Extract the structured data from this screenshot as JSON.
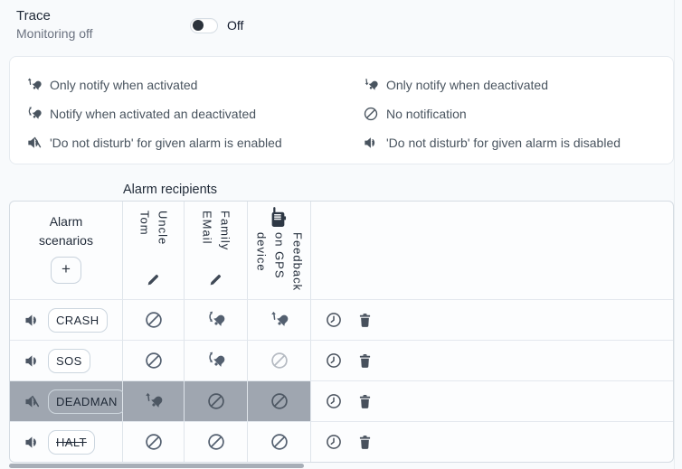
{
  "header": {
    "title": "Trace",
    "subtitle": "Monitoring off",
    "toggle_label": "Off",
    "toggle_state": "off"
  },
  "legend": {
    "items": [
      {
        "icon": "bell-activated",
        "text": "Only notify when activated"
      },
      {
        "icon": "bell-both",
        "text": "Notify when activated an deactivated"
      },
      {
        "icon": "volume-off",
        "text": "'Do not disturb' for given alarm is enabled"
      },
      {
        "icon": "bell-deactivated",
        "text": "Only notify when deactivated"
      },
      {
        "icon": "no-notification",
        "text": "No notification"
      },
      {
        "icon": "volume-on",
        "text": "'Do not disturb' for given alarm is disabled"
      }
    ]
  },
  "table": {
    "caption": "Alarm recipients",
    "scenario_header": "Alarm scenarios",
    "add_label": "+",
    "recipients": [
      {
        "name": "Uncle\nTom",
        "editable": true
      },
      {
        "name": "Family\nEMail",
        "editable": true
      },
      {
        "name": "Feedback\non GPS\ndevice",
        "icon": "walkie-talkie",
        "editable": false
      }
    ],
    "rows": [
      {
        "scenario": "CRASH",
        "sound": "volume-on",
        "strikethrough": false,
        "selected": false,
        "cells": [
          {
            "icon": "no-notification"
          },
          {
            "icon": "bell-both"
          },
          {
            "icon": "bell-activated"
          }
        ]
      },
      {
        "scenario": "SOS",
        "sound": "volume-on",
        "strikethrough": false,
        "selected": false,
        "cells": [
          {
            "icon": "no-notification"
          },
          {
            "icon": "bell-both"
          },
          {
            "icon": "no-notification",
            "disabled": true
          }
        ]
      },
      {
        "scenario": "DEADMAN",
        "sound": "volume-off",
        "strikethrough": false,
        "selected": true,
        "cells": [
          {
            "icon": "bell-activated"
          },
          {
            "icon": "no-notification"
          },
          {
            "icon": "no-notification"
          }
        ]
      },
      {
        "scenario": "HALT",
        "sound": "volume-on",
        "strikethrough": true,
        "selected": false,
        "cells": [
          {
            "icon": "no-notification"
          },
          {
            "icon": "no-notification"
          },
          {
            "icon": "no-notification"
          }
        ]
      }
    ],
    "row_actions": [
      "clock",
      "trash"
    ]
  },
  "colors": {
    "selected_row_bg": "#9fa6b0",
    "toggle_knob": "#2c333c",
    "page_bg": "#f8fafc",
    "icon": "#546070"
  }
}
